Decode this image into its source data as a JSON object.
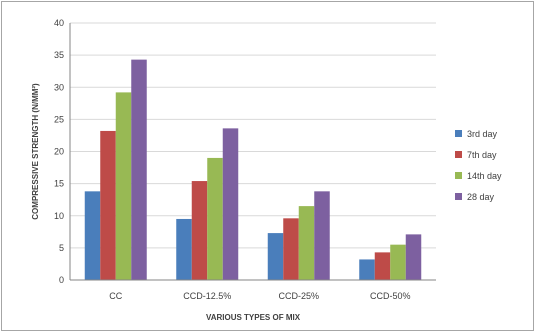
{
  "chart_data": {
    "type": "bar",
    "title": "",
    "xlabel": "VARIOUS TYPES OF MIX",
    "ylabel": "COMPRESSIVE STRENGTH (N/MM²)",
    "ylim": [
      0,
      40
    ],
    "ytick_step": 5,
    "grid": true,
    "legend_position": "right",
    "categories": [
      "CC",
      "CCD-12.5%",
      "CCD-25%",
      "CCD-50%"
    ],
    "series": [
      {
        "name": "3rd day",
        "color": "#4a7ebb",
        "values": [
          13.8,
          9.5,
          7.3,
          3.2
        ]
      },
      {
        "name": "7th day",
        "color": "#be4b48",
        "values": [
          23.2,
          15.4,
          9.6,
          4.3
        ]
      },
      {
        "name": "14th day",
        "color": "#98b954",
        "values": [
          29.2,
          19.0,
          11.5,
          5.5
        ]
      },
      {
        "name": "28 day",
        "color": "#7d60a0",
        "values": [
          34.3,
          23.6,
          13.8,
          7.1
        ]
      }
    ]
  }
}
